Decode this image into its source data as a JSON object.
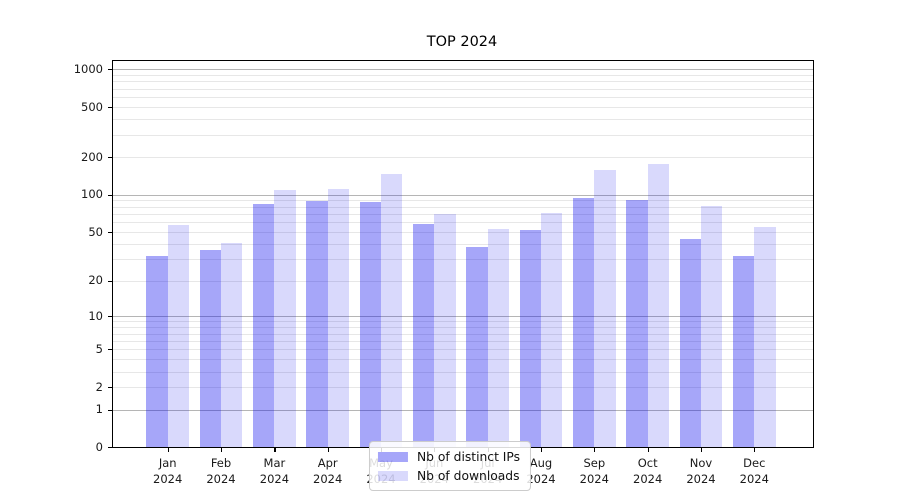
{
  "title": "TOP 2024",
  "chart_data": {
    "type": "bar",
    "title": "TOP 2024",
    "xlabel": "",
    "ylabel": "",
    "categories": [
      "Jan 2024",
      "Feb 2024",
      "Mar 2024",
      "Apr 2024",
      "May 2024",
      "Jun 2024",
      "Jul 2024",
      "Aug 2024",
      "Sep 2024",
      "Oct 2024",
      "Nov 2024",
      "Dec 2024"
    ],
    "month_labels": [
      [
        "Jan",
        "2024"
      ],
      [
        "Feb",
        "2024"
      ],
      [
        "Mar",
        "2024"
      ],
      [
        "Apr",
        "2024"
      ],
      [
        "May",
        "2024"
      ],
      [
        "Jun",
        "2024"
      ],
      [
        "Jul",
        "2024"
      ],
      [
        "Aug",
        "2024"
      ],
      [
        "Sep",
        "2024"
      ],
      [
        "Oct",
        "2024"
      ],
      [
        "Nov",
        "2024"
      ],
      [
        "Dec",
        "2024"
      ]
    ],
    "series": [
      {
        "name": "Nb of distinct IPs",
        "color": "rgba(0,0,238,0.35)",
        "color_hex_on_white": "#a9a9f6",
        "values": [
          32,
          36,
          84,
          89,
          87,
          58,
          38,
          52,
          95,
          90,
          44,
          32
        ]
      },
      {
        "name": "Nb of downloads",
        "color": "rgba(0,0,238,0.15)",
        "color_hex_on_white": "#dcdcfa",
        "values": [
          57,
          41,
          109,
          112,
          146,
          70,
          53,
          72,
          158,
          176,
          82,
          55
        ]
      }
    ],
    "yscale": "log1p",
    "yticks": [
      0,
      1,
      2,
      5,
      10,
      20,
      50,
      100,
      200,
      500,
      1000
    ],
    "ylim": [
      0,
      1250
    ],
    "grid": true,
    "grid_major_ticks": [
      1,
      10,
      100,
      1000
    ],
    "grid_major_color": "#b5b5b5",
    "grid_minor_color": "#e7e7e7",
    "legend_position": "lower center"
  },
  "legend": {
    "items": [
      {
        "label": "Nb of distinct IPs",
        "color": "rgba(0,0,238,0.35)"
      },
      {
        "label": "Nb of downloads",
        "color": "rgba(0,0,238,0.15)"
      }
    ]
  }
}
